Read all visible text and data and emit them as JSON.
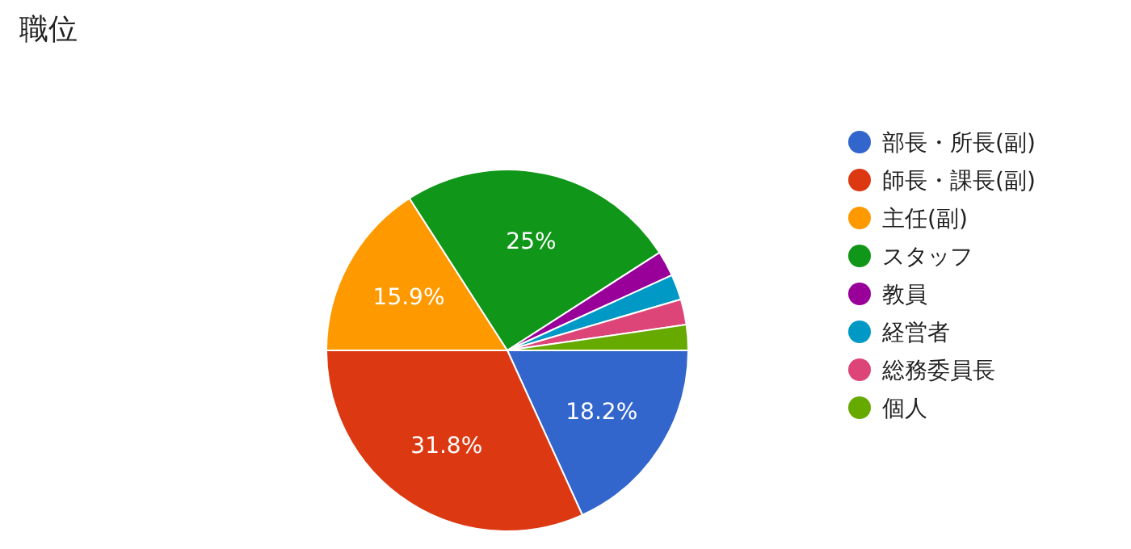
{
  "chart_data": {
    "type": "pie",
    "title": "職位",
    "categories": [
      "部長・所長(副)",
      "師長・課長(副)",
      "主任(副)",
      "スタッフ",
      "教員",
      "経営者",
      "総務委員長",
      "個人"
    ],
    "values": [
      18.2,
      31.8,
      15.9,
      25,
      2.275,
      2.275,
      2.275,
      2.275
    ],
    "colors": [
      "#3366cc",
      "#dc3912",
      "#ff9900",
      "#109618",
      "#990099",
      "#0099c6",
      "#dd4477",
      "#66aa00"
    ],
    "value_labels": [
      "18.2%",
      "31.8%",
      "15.9%",
      "25%",
      null,
      null,
      null,
      null
    ],
    "legend": "right"
  }
}
